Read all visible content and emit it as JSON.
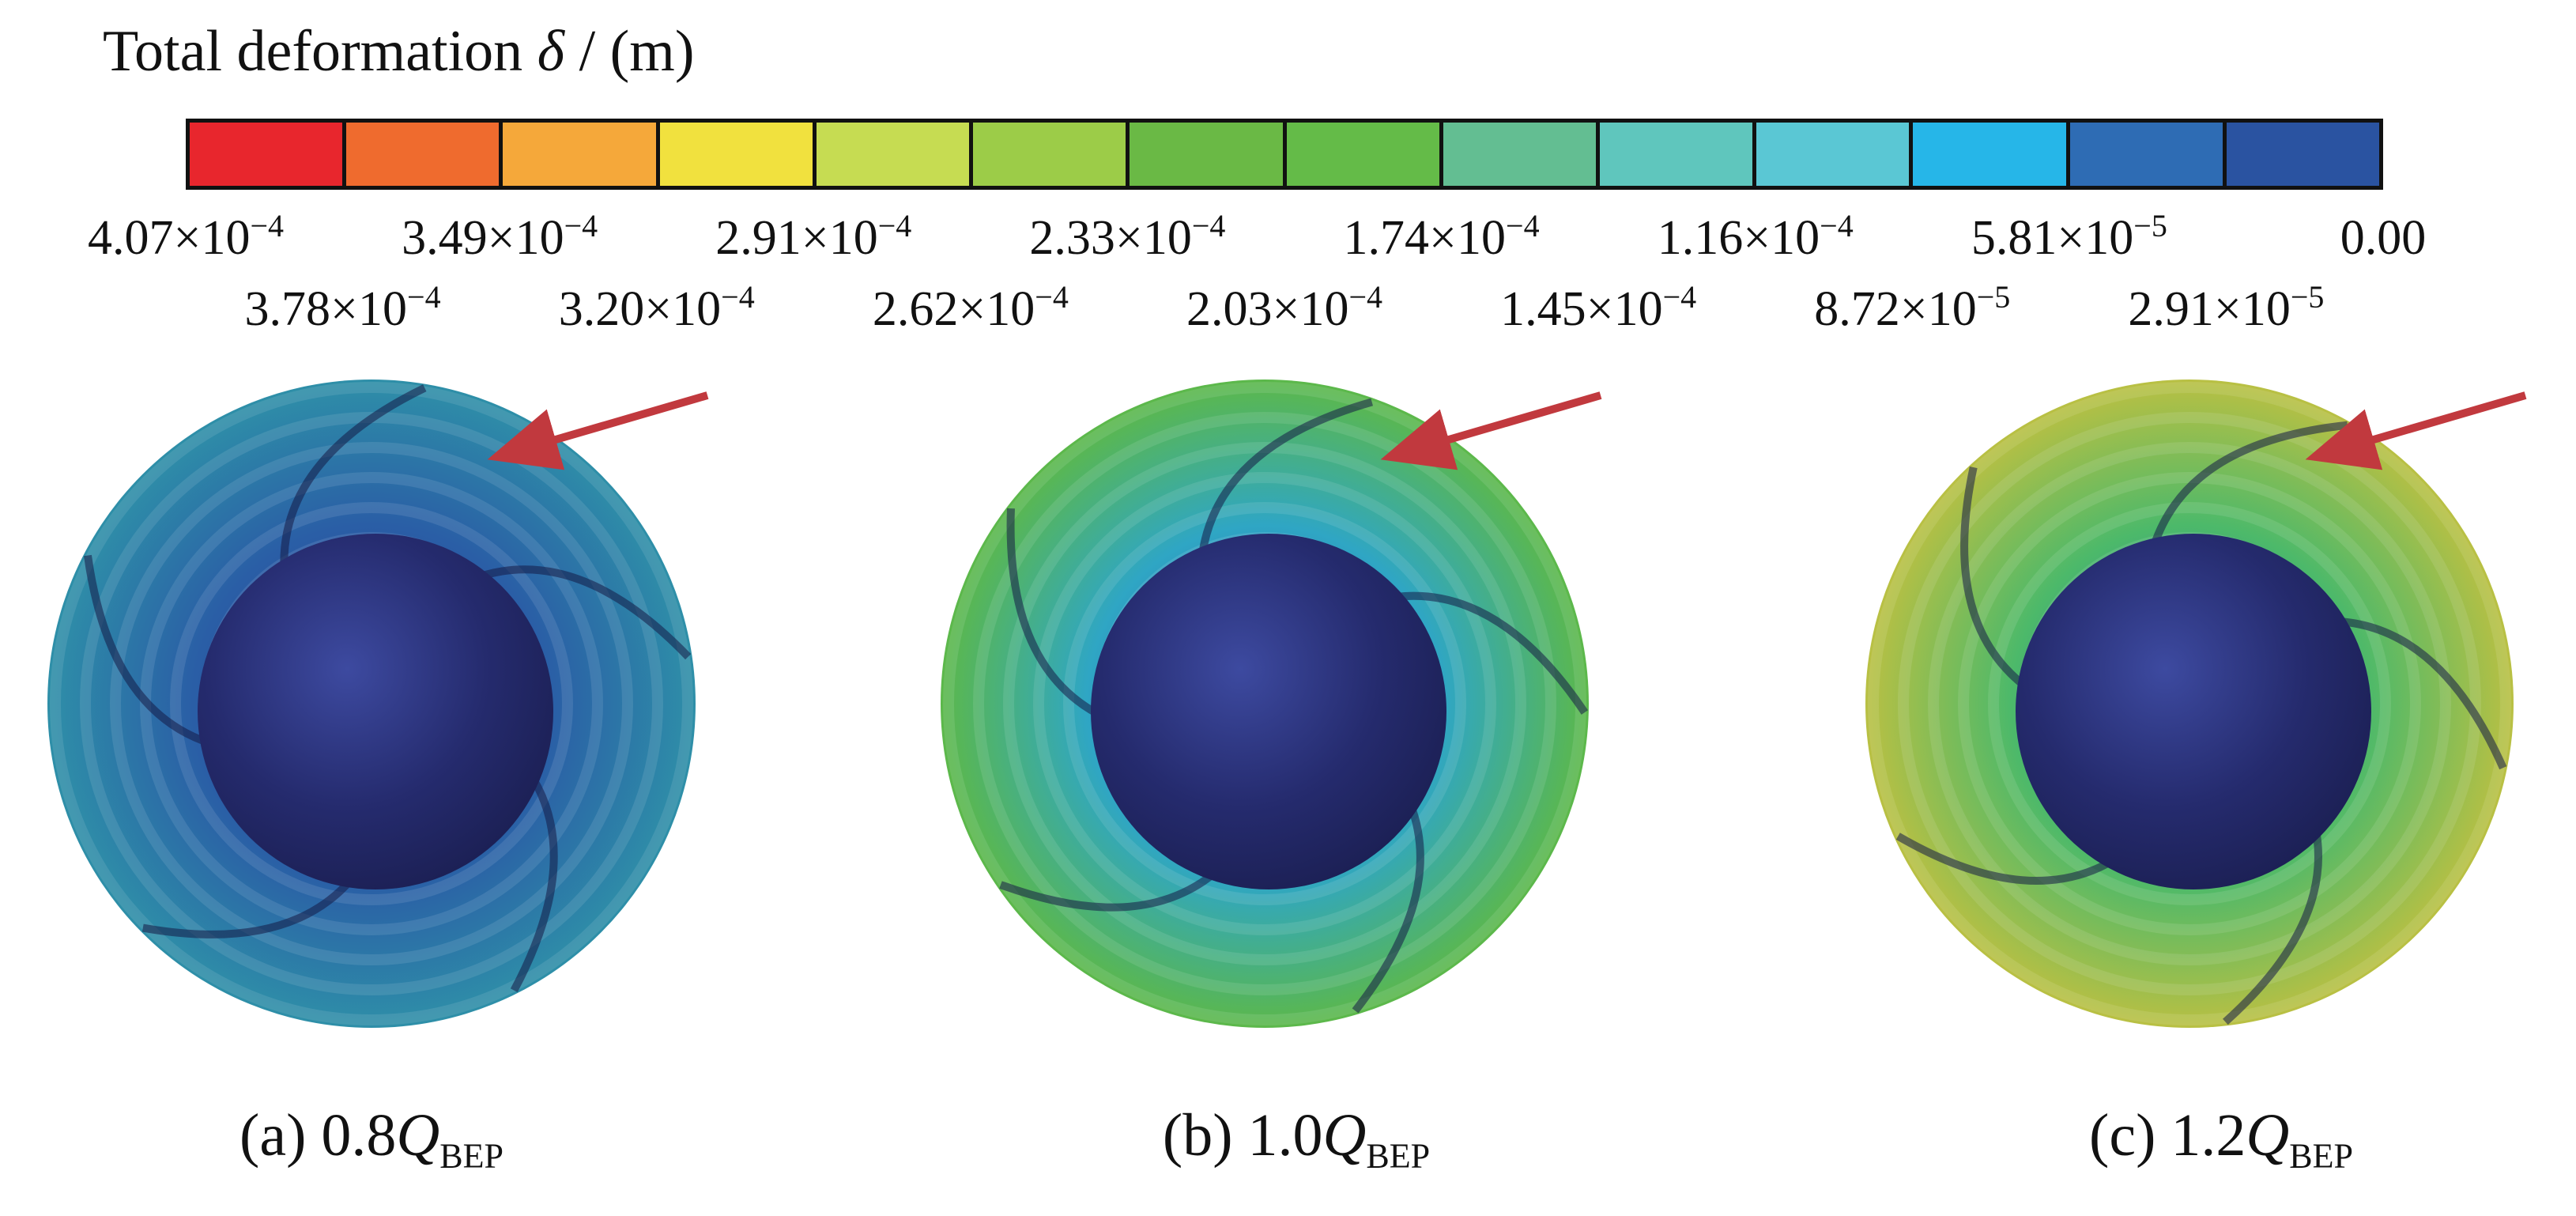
{
  "legend": {
    "title_text": "Total deformation ",
    "title_symbol": "δ",
    "title_unit": " / (m)",
    "colors": [
      "#e8262d",
      "#ef6b2e",
      "#f5a83a",
      "#f1e13e",
      "#c6dc52",
      "#9ccc48",
      "#6ab945",
      "#64bb48",
      "#63be92",
      "#5fc6bd",
      "#5ac7d4",
      "#26b6e8",
      "#2e6cb4",
      "#2a53a1"
    ],
    "ticks_row1": [
      {
        "mantissa": "4.07×10",
        "exp": "−4"
      },
      {
        "mantissa": "3.49×10",
        "exp": "−4"
      },
      {
        "mantissa": "2.91×10",
        "exp": "−4"
      },
      {
        "mantissa": "2.33×10",
        "exp": "−4"
      },
      {
        "mantissa": "1.74×10",
        "exp": "−4"
      },
      {
        "mantissa": "1.16×10",
        "exp": "−4"
      },
      {
        "mantissa": "5.81×10",
        "exp": "−5"
      },
      {
        "mantissa": "0.00",
        "exp": ""
      }
    ],
    "ticks_row2": [
      {
        "mantissa": "3.78×10",
        "exp": "−4"
      },
      {
        "mantissa": "3.20×10",
        "exp": "−4"
      },
      {
        "mantissa": "2.62×10",
        "exp": "−4"
      },
      {
        "mantissa": "2.03×10",
        "exp": "−4"
      },
      {
        "mantissa": "1.45×10",
        "exp": "−4"
      },
      {
        "mantissa": "8.72×10",
        "exp": "−5"
      },
      {
        "mantissa": "2.91×10",
        "exp": "−5"
      }
    ]
  },
  "panels": [
    {
      "label": "(a) 0.8",
      "q": "Q",
      "sub": "BEP",
      "tip_color": "#2e8fa8",
      "mid_color": "#2a5ea6",
      "base_color": "#243a86"
    },
    {
      "label": "(b) 1.0",
      "q": "Q",
      "sub": "BEP",
      "tip_color": "#5cb84a",
      "mid_color": "#2fa6c4",
      "base_color": "#2545a0"
    },
    {
      "label": "(c) 1.2",
      "q": "Q",
      "sub": "BEP",
      "tip_color": "#b9c043",
      "mid_color": "#4cb96a",
      "base_color": "#2a5cb5"
    }
  ],
  "arrow_color": "#c1393e",
  "hub_color": "#252b6e"
}
